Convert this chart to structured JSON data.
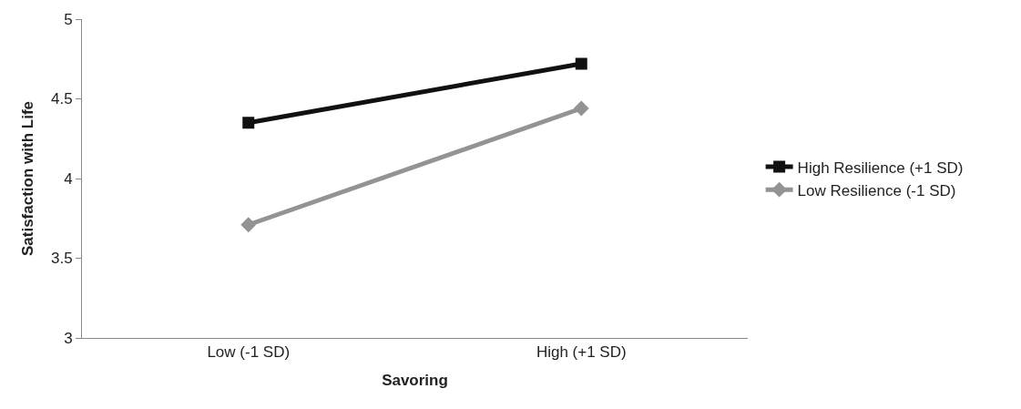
{
  "chart_data": {
    "type": "line",
    "xlabel": "Savoring",
    "ylabel": "Satisfaction with Life",
    "categories": [
      "Low (-1 SD)",
      "High (+1 SD)"
    ],
    "series": [
      {
        "name": "High Resilience (+1 SD)",
        "color": "#111111",
        "values": [
          4.35,
          4.72
        ],
        "marker": "square"
      },
      {
        "name": "Low Resilience (-1 SD)",
        "color": "#939393",
        "values": [
          3.71,
          4.44
        ],
        "marker": "diamond"
      }
    ],
    "ylim": [
      3,
      5
    ],
    "yticks": [
      3,
      3.5,
      4,
      4.5,
      5
    ],
    "legend": "right",
    "line_style": "solid"
  }
}
